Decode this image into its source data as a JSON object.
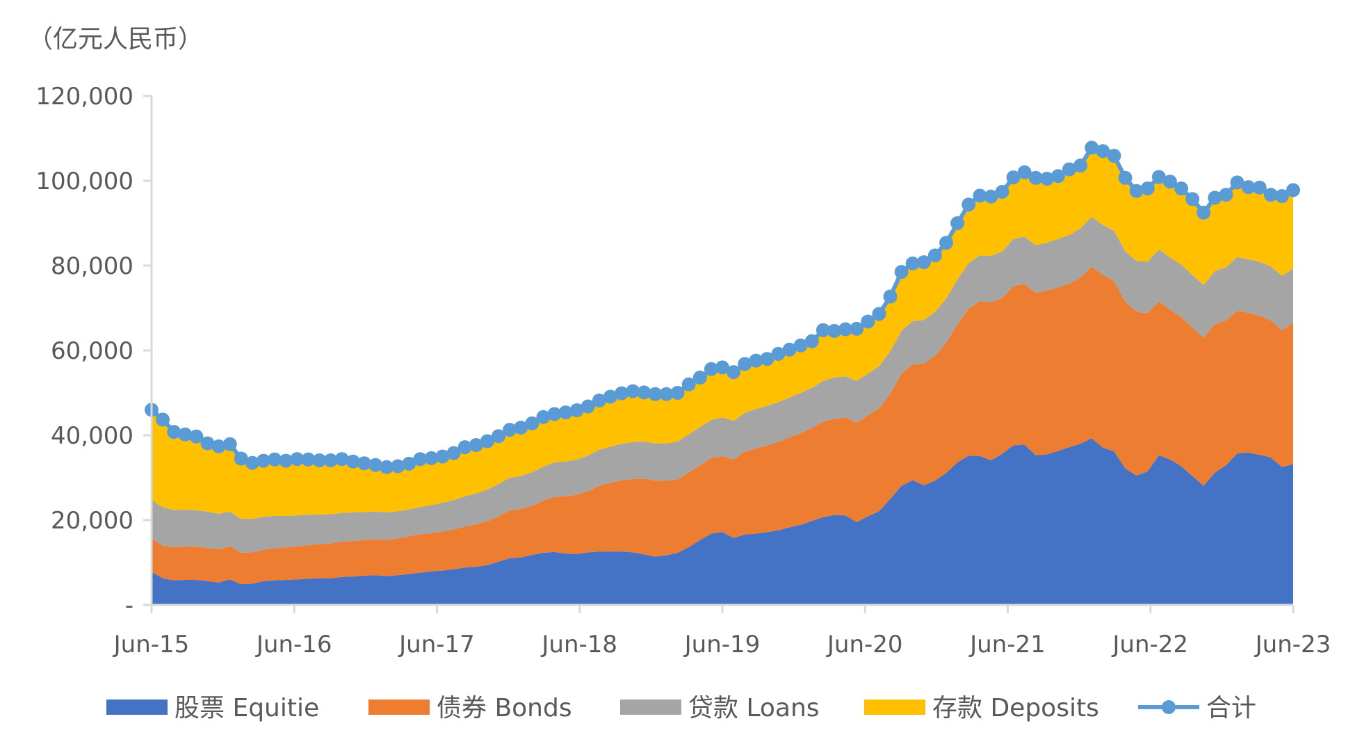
{
  "chart_data": {
    "type": "area",
    "unit_label": "（亿元人民币）",
    "x_tick_labels": [
      "Jun-15",
      "Jun-16",
      "Jun-17",
      "Jun-18",
      "Jun-19",
      "Jun-20",
      "Jun-21",
      "Jun-22",
      "Jun-23"
    ],
    "y_tick_labels": [
      "-",
      "20,000",
      "40,000",
      "60,000",
      "80,000",
      "100,000",
      "120,000"
    ],
    "ylim": [
      0,
      120000
    ],
    "x_start": "2015-06",
    "x_end": "2023-06",
    "grid": false,
    "legend_position": "bottom",
    "series": [
      {
        "name": "股票 Equitie",
        "color": "#4472C4",
        "values": [
          7800,
          6300,
          5800,
          5900,
          5900,
          5600,
          5300,
          6000,
          4900,
          5000,
          5600,
          5800,
          5900,
          6000,
          6200,
          6300,
          6300,
          6600,
          6700,
          6900,
          7000,
          6800,
          7000,
          7300,
          7600,
          7900,
          8100,
          8400,
          8800,
          9000,
          9400,
          10200,
          11000,
          11200,
          11800,
          12300,
          12500,
          12100,
          12000,
          12400,
          12600,
          12600,
          12600,
          12400,
          11900,
          11400,
          11700,
          12300,
          13600,
          15300,
          16800,
          17200,
          15800,
          16600,
          16800,
          17200,
          17600,
          18300,
          18900,
          19800,
          20700,
          21200,
          21100,
          19500,
          20900,
          22100,
          25000,
          28100,
          29400,
          28200,
          29300,
          31100,
          33600,
          35200,
          35100,
          34100,
          35600,
          37600,
          37800,
          35300,
          35500,
          36300,
          37200,
          38000,
          39300,
          37100,
          36200,
          32200,
          30500,
          31500,
          35300,
          34300,
          32700,
          30400,
          28100,
          31200,
          32900,
          35700,
          35900,
          35400,
          34800,
          32500,
          33200
        ]
      },
      {
        "name": "债券 Bonds",
        "color": "#ED7D31",
        "values": [
          7800,
          7700,
          7800,
          7900,
          7800,
          7900,
          7800,
          7800,
          7400,
          7400,
          7400,
          7600,
          7700,
          7800,
          7900,
          8000,
          8200,
          8300,
          8400,
          8400,
          8500,
          8600,
          8700,
          8900,
          9100,
          9000,
          9200,
          9400,
          9700,
          10000,
          10300,
          10700,
          11300,
          11400,
          11600,
          12300,
          13000,
          13500,
          14000,
          14400,
          15500,
          16200,
          16800,
          17300,
          17900,
          17900,
          17600,
          17300,
          17700,
          17600,
          17800,
          17900,
          18500,
          19500,
          20100,
          20400,
          20800,
          21200,
          21600,
          21900,
          22500,
          22700,
          23100,
          23500,
          23800,
          24300,
          24800,
          26400,
          27300,
          28700,
          29400,
          30700,
          32500,
          34700,
          36500,
          37300,
          36700,
          37600,
          37900,
          38300,
          38600,
          38600,
          38500,
          39200,
          40500,
          40700,
          40200,
          39300,
          38600,
          37300,
          36300,
          35300,
          35200,
          35000,
          34900,
          35000,
          34200,
          33700,
          33000,
          32800,
          32300,
          32300,
          33300
        ]
      },
      {
        "name": "贷款 Loans",
        "color": "#A5A5A5",
        "values": [
          9200,
          9000,
          8800,
          8700,
          8600,
          8500,
          8400,
          8200,
          8000,
          7900,
          7800,
          7600,
          7400,
          7300,
          7200,
          7000,
          6900,
          6800,
          6700,
          6600,
          6500,
          6400,
          6400,
          6300,
          6400,
          6600,
          6800,
          6900,
          7100,
          7300,
          7500,
          7600,
          7700,
          7800,
          7900,
          8000,
          8100,
          8200,
          8300,
          8400,
          8500,
          8500,
          8600,
          8700,
          8700,
          8800,
          8800,
          8900,
          8900,
          9000,
          9000,
          9100,
          9100,
          9200,
          9300,
          9300,
          9400,
          9400,
          9500,
          9500,
          9600,
          9700,
          9700,
          9800,
          9800,
          9900,
          10000,
          10100,
          10200,
          10300,
          10400,
          10500,
          10600,
          10700,
          10800,
          10900,
          11000,
          11100,
          11100,
          11200,
          11300,
          11400,
          11500,
          11600,
          11700,
          11800,
          11800,
          11900,
          12000,
          12100,
          12200,
          12300,
          12300,
          12400,
          12400,
          12500,
          12500,
          12600,
          12600,
          12700,
          12700,
          12800,
          12800
        ]
      },
      {
        "name": "存款 Deposits",
        "color": "#FFC000",
        "values": [
          21200,
          20700,
          18400,
          17700,
          17400,
          16100,
          15900,
          15900,
          14200,
          13200,
          13200,
          13300,
          13000,
          13300,
          13000,
          12800,
          12700,
          12700,
          12000,
          11500,
          11000,
          10700,
          10600,
          10800,
          11300,
          11100,
          10900,
          11100,
          11600,
          11400,
          11400,
          11300,
          11300,
          11400,
          11500,
          11700,
          11400,
          11600,
          11600,
          11600,
          11600,
          11800,
          11900,
          12000,
          11600,
          11600,
          11600,
          11500,
          11800,
          11700,
          12000,
          11800,
          11500,
          11500,
          11400,
          11100,
          11400,
          11300,
          11200,
          11000,
          12000,
          11000,
          11100,
          12300,
          12300,
          12300,
          12900,
          13900,
          13600,
          13600,
          13300,
          13100,
          13300,
          13800,
          14100,
          14000,
          14100,
          14500,
          15200,
          15900,
          15100,
          14800,
          15500,
          14800,
          16300,
          17400,
          17700,
          17300,
          16500,
          17300,
          17100,
          17900,
          18000,
          17900,
          17100,
          17300,
          17100,
          17600,
          17000,
          17500,
          16900,
          18800,
          18500
        ]
      },
      {
        "name": "合计",
        "color": "#5B9BD5",
        "values": [
          46000,
          43700,
          40800,
          40200,
          39700,
          38100,
          37400,
          37900,
          34500,
          33500,
          34000,
          34300,
          34000,
          34400,
          34300,
          34100,
          34100,
          34400,
          33800,
          33400,
          33000,
          32500,
          32700,
          33300,
          34400,
          34600,
          35000,
          35800,
          37200,
          37700,
          38600,
          39800,
          41300,
          41800,
          42800,
          44300,
          45000,
          45400,
          45900,
          46800,
          48200,
          49100,
          49900,
          50400,
          50100,
          49700,
          49700,
          50000,
          52000,
          53600,
          55600,
          56000,
          54900,
          56800,
          57600,
          58000,
          59200,
          60200,
          61200,
          62200,
          64800,
          64600,
          65000,
          65100,
          66800,
          68600,
          72700,
          78500,
          80500,
          80800,
          82400,
          85400,
          90000,
          94400,
          96500,
          96300,
          97400,
          100800,
          102000,
          100700,
          100500,
          101100,
          102700,
          103600,
          107800,
          107000,
          105900,
          100700,
          97600,
          98200,
          100900,
          99800,
          98200,
          95700,
          92500,
          96000,
          96700,
          99600,
          98500,
          98400,
          96700,
          96400,
          97800
        ]
      }
    ]
  }
}
